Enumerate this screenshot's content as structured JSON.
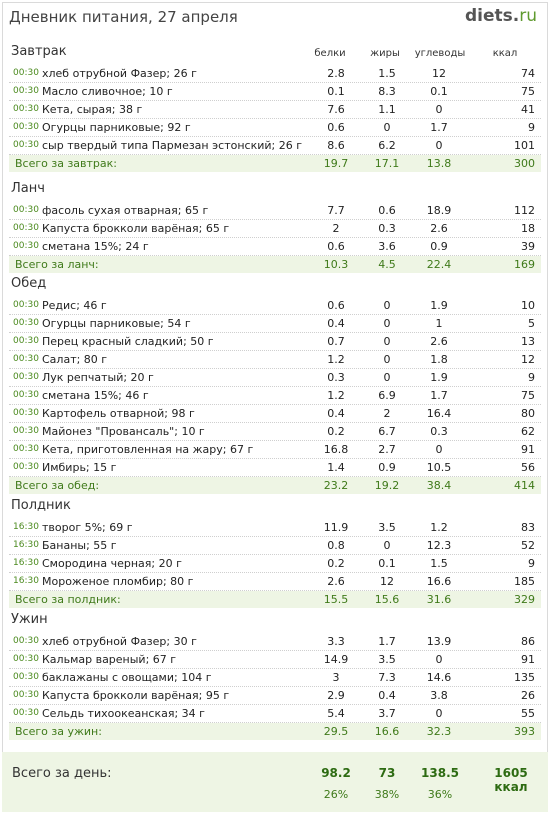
{
  "header": {
    "title": "Дневник питания, 27 апреля",
    "logo_main": "diets",
    "logo_dot": ".",
    "logo_tld": "ru"
  },
  "columns": {
    "protein": "белки",
    "fat": "жиры",
    "carbs": "углеводы",
    "kcal": "ккал"
  },
  "sections": [
    {
      "title": "Завтрак",
      "items": [
        {
          "time": "00:30",
          "name": "хлеб отрубной Фазер; 26 г",
          "p": "2.8",
          "f": "1.5",
          "c": "12",
          "k": "74"
        },
        {
          "time": "00:30",
          "name": "Масло сливочное; 10 г",
          "p": "0.1",
          "f": "8.3",
          "c": "0.1",
          "k": "75"
        },
        {
          "time": "00:30",
          "name": "Кета, сырая; 38 г",
          "p": "7.6",
          "f": "1.1",
          "c": "0",
          "k": "41"
        },
        {
          "time": "00:30",
          "name": "Огурцы парниковые; 92 г",
          "p": "0.6",
          "f": "0",
          "c": "1.7",
          "k": "9"
        },
        {
          "time": "00:30",
          "name": "сыр твердый типа Пармезан эстонский; 26 г",
          "p": "8.6",
          "f": "6.2",
          "c": "0",
          "k": "101"
        }
      ],
      "total": {
        "label": "Всего за завтрак:",
        "p": "19.7",
        "f": "17.1",
        "c": "13.8",
        "k": "300"
      }
    },
    {
      "title": "Ланч",
      "items": [
        {
          "time": "00:30",
          "name": "фасоль сухая отварная; 65 г",
          "p": "7.7",
          "f": "0.6",
          "c": "18.9",
          "k": "112"
        },
        {
          "time": "00:30",
          "name": "Капуста брокколи варёная; 65 г",
          "p": "2",
          "f": "0.3",
          "c": "2.6",
          "k": "18"
        },
        {
          "time": "00:30",
          "name": "сметана 15%; 24 г",
          "p": "0.6",
          "f": "3.6",
          "c": "0.9",
          "k": "39"
        }
      ],
      "total": {
        "label": "Всего за ланч:",
        "p": "10.3",
        "f": "4.5",
        "c": "22.4",
        "k": "169"
      }
    },
    {
      "title": "Обед",
      "items": [
        {
          "time": "00:30",
          "name": "Редис; 46 г",
          "p": "0.6",
          "f": "0",
          "c": "1.9",
          "k": "10"
        },
        {
          "time": "00:30",
          "name": "Огурцы парниковые; 54 г",
          "p": "0.4",
          "f": "0",
          "c": "1",
          "k": "5"
        },
        {
          "time": "00:30",
          "name": "Перец красный сладкий; 50 г",
          "p": "0.7",
          "f": "0",
          "c": "2.6",
          "k": "13"
        },
        {
          "time": "00:30",
          "name": "Салат; 80 г",
          "p": "1.2",
          "f": "0",
          "c": "1.8",
          "k": "12"
        },
        {
          "time": "00:30",
          "name": "Лук репчатый; 20 г",
          "p": "0.3",
          "f": "0",
          "c": "1.9",
          "k": "9"
        },
        {
          "time": "00:30",
          "name": "сметана 15%; 46 г",
          "p": "1.2",
          "f": "6.9",
          "c": "1.7",
          "k": "75"
        },
        {
          "time": "00:30",
          "name": "Картофель отварной; 98 г",
          "p": "0.4",
          "f": "2",
          "c": "16.4",
          "k": "80"
        },
        {
          "time": "00:30",
          "name": "Майонез \"Провансаль\"; 10 г",
          "p": "0.2",
          "f": "6.7",
          "c": "0.3",
          "k": "62"
        },
        {
          "time": "00:30",
          "name": "Кета, приготовленная на жару; 67 г",
          "p": "16.8",
          "f": "2.7",
          "c": "0",
          "k": "91"
        },
        {
          "time": "00:30",
          "name": "Имбирь; 15 г",
          "p": "1.4",
          "f": "0.9",
          "c": "10.5",
          "k": "56"
        }
      ],
      "total": {
        "label": "Всего за обед:",
        "p": "23.2",
        "f": "19.2",
        "c": "38.4",
        "k": "414"
      }
    },
    {
      "title": "Полдник",
      "items": [
        {
          "time": "16:30",
          "name": "творог 5%; 69 г",
          "p": "11.9",
          "f": "3.5",
          "c": "1.2",
          "k": "83"
        },
        {
          "time": "16:30",
          "name": "Бананы; 55 г",
          "p": "0.8",
          "f": "0",
          "c": "12.3",
          "k": "52"
        },
        {
          "time": "16:30",
          "name": "Смородина черная; 20 г",
          "p": "0.2",
          "f": "0.1",
          "c": "1.5",
          "k": "9"
        },
        {
          "time": "16:30",
          "name": "Мороженое пломбир; 80 г",
          "p": "2.6",
          "f": "12",
          "c": "16.6",
          "k": "185"
        }
      ],
      "total": {
        "label": "Всего за полдник:",
        "p": "15.5",
        "f": "15.6",
        "c": "31.6",
        "k": "329"
      }
    },
    {
      "title": "Ужин",
      "items": [
        {
          "time": "00:30",
          "name": "хлеб отрубной Фазер; 30 г",
          "p": "3.3",
          "f": "1.7",
          "c": "13.9",
          "k": "86"
        },
        {
          "time": "00:30",
          "name": "Кальмар вареный; 67 г",
          "p": "14.9",
          "f": "3.5",
          "c": "0",
          "k": "91"
        },
        {
          "time": "00:30",
          "name": "баклажаны с овощами; 104 г",
          "p": "3",
          "f": "7.3",
          "c": "14.6",
          "k": "135"
        },
        {
          "time": "00:30",
          "name": "Капуста брокколи варёная; 95 г",
          "p": "2.9",
          "f": "0.4",
          "c": "3.8",
          "k": "26"
        },
        {
          "time": "00:30",
          "name": "Сельдь тихоокеанская; 34 г",
          "p": "5.4",
          "f": "3.7",
          "c": "0",
          "k": "55"
        }
      ],
      "total": {
        "label": "Всего за ужин:",
        "p": "29.5",
        "f": "16.6",
        "c": "32.3",
        "k": "393"
      }
    }
  ],
  "day_total": {
    "label": "Всего за день:",
    "p": "98.2",
    "f": "73",
    "c": "138.5",
    "k": "1605 ккал",
    "pp": "26%",
    "fp": "38%",
    "cp": "36%"
  }
}
